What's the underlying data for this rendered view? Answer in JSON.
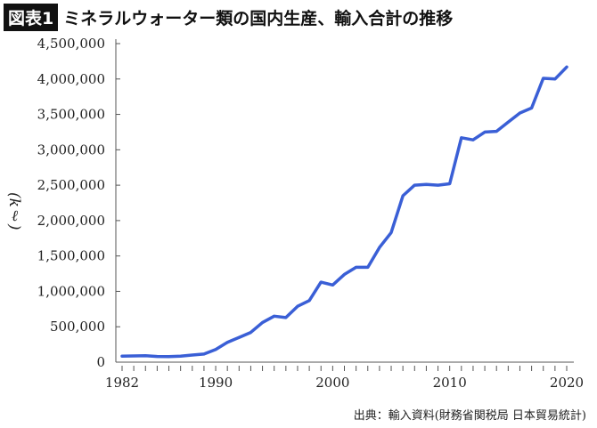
{
  "header": {
    "badge": "図表1",
    "title": "ミネラルウォーター類の国内生産、輸入合計の推移"
  },
  "source": "出典：輸入資料(財務省関税局 日本貿易統計)",
  "chart_data": {
    "type": "line",
    "title": "ミネラルウォーター類の国内生産、輸入合計の推移",
    "ylabel": "(kℓ)",
    "xlabel": "",
    "xlim": [
      1982,
      2020
    ],
    "ylim": [
      0,
      4500000
    ],
    "x_ticks": [
      1982,
      1990,
      2000,
      2010,
      2020
    ],
    "y_ticks": [
      "0",
      "500,000",
      "1,000,000",
      "1,500,000",
      "2,000,000",
      "2,500,000",
      "3,000,000",
      "3,500,000",
      "4,000,000",
      "4,500,000"
    ],
    "grid": false,
    "color": "#3a5fd6",
    "x": [
      1982,
      1983,
      1984,
      1985,
      1986,
      1987,
      1988,
      1989,
      1990,
      1991,
      1992,
      1993,
      1994,
      1995,
      1996,
      1997,
      1998,
      1999,
      2000,
      2001,
      2002,
      2003,
      2004,
      2005,
      2006,
      2007,
      2008,
      2009,
      2010,
      2011,
      2012,
      2013,
      2014,
      2015,
      2016,
      2017,
      2018,
      2019,
      2020
    ],
    "values": [
      85000,
      88000,
      90000,
      80000,
      78000,
      85000,
      100000,
      115000,
      180000,
      280000,
      350000,
      420000,
      560000,
      650000,
      630000,
      790000,
      870000,
      1130000,
      1090000,
      1240000,
      1340000,
      1340000,
      1620000,
      1830000,
      2350000,
      2500000,
      2510000,
      2500000,
      2520000,
      3170000,
      3140000,
      3250000,
      3260000,
      3390000,
      3520000,
      3590000,
      4010000,
      4000000,
      4170000
    ]
  }
}
